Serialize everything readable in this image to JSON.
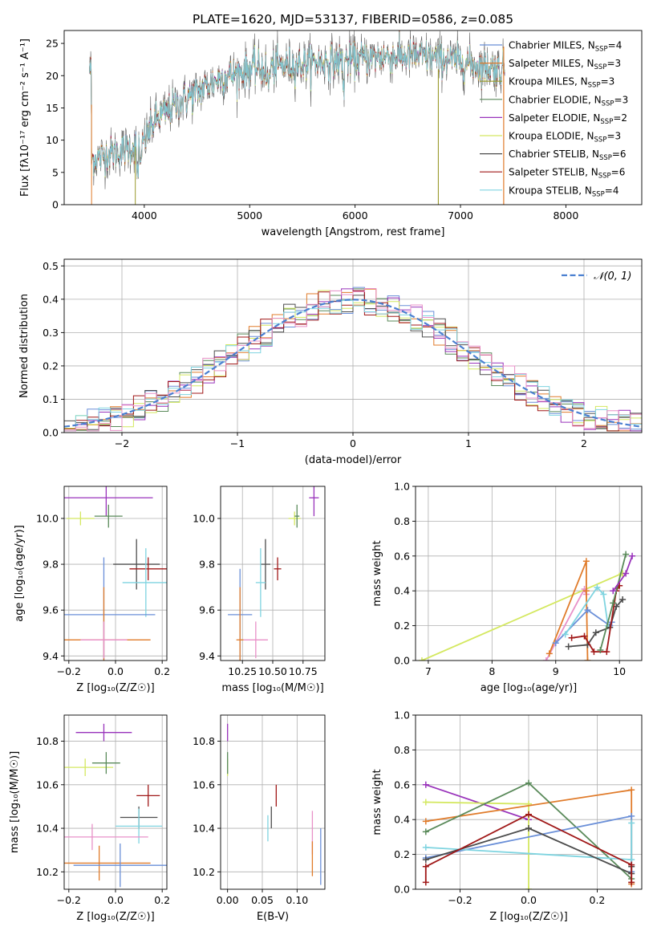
{
  "figure_title": "PLATE=1620, MJD=53137, FIBERID=0586, z=0.085",
  "colors": {
    "chabrier_miles": "#6a8fd8",
    "salpeter_miles": "#e07b2a",
    "kroupa_miles": "#9a9a2a",
    "chabrier_elodie": "#5a8a5a",
    "salpeter_elodie": "#9933bb",
    "kroupa_elodie": "#d4e860",
    "chabrier_stelib": "#4d4d4d",
    "salpeter_stelib": "#a01818",
    "kroupa_stelib": "#7fd4e0",
    "pink": "#e890c8",
    "gauss": "#4a7fd0"
  },
  "chart_data": [
    {
      "id": "spectrum",
      "type": "line",
      "xlabel": "wavelength [Angstrom, rest frame]",
      "ylabel": "Flux [fλ10⁻¹⁷ erg cm⁻² s⁻¹ A⁻¹]",
      "xlim": [
        3240,
        8720
      ],
      "ylim": [
        0,
        27
      ],
      "xticks": [
        4000,
        5000,
        6000,
        7000,
        8000
      ],
      "yticks": [
        0,
        5,
        10,
        15,
        20,
        25
      ],
      "legend_position": "top-right",
      "legend": [
        "Chabrier MILES, NSSP=4",
        "Salpeter MILES, NSSP=3",
        "Kroupa MILES, NSSP=3",
        "Chabrier ELODIE, NSSP=3",
        "Salpeter ELODIE, NSSP=2",
        "Kroupa ELODIE, NSSP=3",
        "Chabrier STELIB, NSSP=6",
        "Salpeter STELIB, NSSP=6",
        "Kroupa STELIB, NSSP=4"
      ],
      "continuum": {
        "x": [
          3500,
          3700,
          3900,
          4000,
          4100,
          4300,
          4500,
          4700,
          5000,
          5300,
          5600,
          6000,
          6300,
          6600,
          6900,
          7200,
          7400
        ],
        "y": [
          7,
          8,
          9,
          10,
          13,
          15.5,
          17.5,
          19.5,
          21,
          21.5,
          22,
          22.5,
          23,
          23,
          22.5,
          21.5,
          21
        ]
      }
    },
    {
      "id": "residuals",
      "type": "bar",
      "xlabel": "(data-model)/error",
      "ylabel": "Normed distribution",
      "xlim": [
        -2.5,
        2.5
      ],
      "ylim": [
        0,
        0.52
      ],
      "xticks": [
        -2,
        -1,
        0,
        1,
        2
      ],
      "yticks": [
        0.0,
        0.1,
        0.2,
        0.3,
        0.4,
        0.5
      ],
      "grid": true,
      "legend_position": "top-right",
      "legend": [
        "𝒩(0, 1)"
      ]
    },
    {
      "id": "age_vs_Z",
      "type": "scatter",
      "xlabel": "Z [log₁₀(Z/Z☉)]",
      "ylabel": "age  [log₁₀(age/yr)]",
      "xlim": [
        -0.22,
        0.22
      ],
      "ylim": [
        9.38,
        10.14
      ],
      "xticks": [
        -0.2,
        0.0,
        0.2
      ],
      "yticks": [
        9.4,
        9.6,
        9.8,
        10.0
      ],
      "points": [
        {
          "x": -0.04,
          "xerr": 0.2,
          "y": 10.09,
          "yerr": 0.08,
          "c": "salpeter_elodie"
        },
        {
          "x": -0.15,
          "xerr": 0.06,
          "y": 10.0,
          "yerr": 0.03,
          "c": "kroupa_elodie"
        },
        {
          "x": -0.03,
          "xerr": 0.06,
          "y": 10.01,
          "yerr": 0.05,
          "c": "chabrier_elodie"
        },
        {
          "x": 0.09,
          "xerr": 0.1,
          "y": 9.8,
          "yerr": 0.11,
          "c": "chabrier_stelib"
        },
        {
          "x": 0.14,
          "xerr": 0.08,
          "y": 9.78,
          "yerr": 0.05,
          "c": "salpeter_stelib"
        },
        {
          "x": 0.13,
          "xerr": 0.1,
          "y": 9.72,
          "yerr": 0.15,
          "c": "kroupa_stelib"
        },
        {
          "x": -0.05,
          "xerr": 0.22,
          "y": 9.58,
          "yerr": 0.25,
          "c": "chabrier_miles"
        },
        {
          "x": -0.05,
          "xerr": 0.2,
          "y": 9.47,
          "yerr": 0.23,
          "c": "salpeter_miles"
        },
        {
          "x": -0.05,
          "xerr": 0.1,
          "y": 9.47,
          "yerr": 0.08,
          "c": "pink"
        }
      ]
    },
    {
      "id": "age_vs_mass",
      "type": "scatter",
      "xlabel": "mass [log₁₀(M/M☉)]",
      "ylabel": "",
      "xlim": [
        10.07,
        10.93
      ],
      "ylim": [
        9.38,
        10.14
      ],
      "xticks": [
        10.25,
        10.5,
        10.75
      ],
      "yticks": [
        9.4,
        9.6,
        9.8,
        10.0
      ],
      "points": [
        {
          "x": 10.84,
          "xerr": 0.04,
          "y": 10.09,
          "yerr": 0.08,
          "c": "salpeter_elodie"
        },
        {
          "x": 10.68,
          "xerr": 0.05,
          "y": 10.0,
          "yerr": 0.03,
          "c": "kroupa_elodie"
        },
        {
          "x": 10.7,
          "xerr": 0.02,
          "y": 10.01,
          "yerr": 0.05,
          "c": "chabrier_elodie"
        },
        {
          "x": 10.44,
          "xerr": 0.04,
          "y": 9.8,
          "yerr": 0.11,
          "c": "chabrier_stelib"
        },
        {
          "x": 10.54,
          "xerr": 0.03,
          "y": 9.78,
          "yerr": 0.05,
          "c": "salpeter_stelib"
        },
        {
          "x": 10.4,
          "xerr": 0.04,
          "y": 9.72,
          "yerr": 0.15,
          "c": "kroupa_stelib"
        },
        {
          "x": 10.23,
          "xerr": 0.1,
          "y": 9.58,
          "yerr": 0.2,
          "c": "chabrier_miles"
        },
        {
          "x": 10.23,
          "xerr": 0.03,
          "y": 9.47,
          "yerr": 0.23,
          "c": "salpeter_miles"
        },
        {
          "x": 10.36,
          "xerr": 0.1,
          "y": 9.47,
          "yerr": 0.08,
          "c": "pink"
        }
      ]
    },
    {
      "id": "weight_vs_age",
      "type": "line",
      "xlabel": "age  [log₁₀(age/yr)]",
      "ylabel": "mass weight",
      "xlim": [
        6.8,
        10.35
      ],
      "ylim": [
        0,
        1.0
      ],
      "xticks": [
        7,
        8,
        9,
        10
      ],
      "yticks": [
        0.0,
        0.2,
        0.4,
        0.6,
        0.8,
        1.0
      ],
      "series": [
        {
          "c": "kroupa_elodie",
          "x": [
            6.9,
            10.04,
            10.05
          ],
          "y": [
            0.0,
            0.5,
            0.5
          ]
        },
        {
          "c": "pink",
          "x": [
            8.85,
            9.45,
            9.48
          ],
          "y": [
            0.0,
            0.41,
            0.38
          ]
        },
        {
          "c": "salpeter_miles",
          "x": [
            8.9,
            9.48,
            9.48,
            9.5
          ],
          "y": [
            0.04,
            0.57,
            0.4,
            0.0
          ]
        },
        {
          "c": "chabrier_miles",
          "x": [
            9.0,
            9.5,
            9.85,
            9.88
          ],
          "y": [
            0.1,
            0.29,
            0.2,
            0.22
          ]
        },
        {
          "c": "kroupa_stelib",
          "x": [
            9.15,
            9.65,
            9.75,
            9.82
          ],
          "y": [
            0.15,
            0.42,
            0.38,
            0.2
          ]
        },
        {
          "c": "chabrier_stelib",
          "x": [
            9.2,
            9.5,
            9.63,
            9.85,
            9.95,
            10.05
          ],
          "y": [
            0.08,
            0.09,
            0.16,
            0.19,
            0.31,
            0.35
          ]
        },
        {
          "c": "salpeter_stelib",
          "x": [
            9.25,
            9.45,
            9.6,
            9.8,
            9.95,
            10.0
          ],
          "y": [
            0.13,
            0.14,
            0.05,
            0.05,
            0.4,
            0.43
          ]
        },
        {
          "c": "chabrier_elodie",
          "x": [
            9.7,
            9.9,
            10.1
          ],
          "y": [
            0.06,
            0.33,
            0.61
          ]
        },
        {
          "c": "salpeter_elodie",
          "x": [
            9.9,
            10.1,
            10.2
          ],
          "y": [
            0.4,
            0.5,
            0.6
          ]
        }
      ]
    },
    {
      "id": "mass_vs_Z",
      "type": "scatter",
      "xlabel": "Z [log₁₀(Z/Z☉)]",
      "ylabel": "mass [log₁₀(M/M☉)]",
      "xlim": [
        -0.22,
        0.22
      ],
      "ylim": [
        10.12,
        10.92
      ],
      "xticks": [
        -0.2,
        0.0,
        0.2
      ],
      "yticks": [
        10.2,
        10.4,
        10.6,
        10.8
      ],
      "points": [
        {
          "x": -0.05,
          "xerr": 0.12,
          "y": 10.84,
          "yerr": 0.04,
          "c": "salpeter_elodie"
        },
        {
          "x": -0.13,
          "xerr": 0.12,
          "y": 10.68,
          "yerr": 0.04,
          "c": "kroupa_elodie"
        },
        {
          "x": -0.04,
          "xerr": 0.06,
          "y": 10.7,
          "yerr": 0.05,
          "c": "chabrier_elodie"
        },
        {
          "x": 0.14,
          "xerr": 0.05,
          "y": 10.55,
          "yerr": 0.05,
          "c": "salpeter_stelib"
        },
        {
          "x": 0.1,
          "xerr": 0.08,
          "y": 10.45,
          "yerr": 0.05,
          "c": "chabrier_stelib"
        },
        {
          "x": 0.1,
          "xerr": 0.1,
          "y": 10.41,
          "yerr": 0.08,
          "c": "kroupa_stelib"
        },
        {
          "x": -0.1,
          "xerr": 0.24,
          "y": 10.36,
          "yerr": 0.06,
          "c": "pink"
        },
        {
          "x": -0.07,
          "xerr": 0.22,
          "y": 10.24,
          "yerr": 0.08,
          "c": "salpeter_miles"
        },
        {
          "x": 0.02,
          "xerr": 0.2,
          "y": 10.23,
          "yerr": 0.1,
          "c": "chabrier_miles"
        }
      ]
    },
    {
      "id": "mass_vs_ebv",
      "type": "scatter",
      "xlabel": "E(B-V)",
      "ylabel": "",
      "xlim": [
        -0.01,
        0.14
      ],
      "ylim": [
        10.12,
        10.92
      ],
      "xticks": [
        0.0,
        0.05,
        0.1
      ],
      "yticks": [
        10.2,
        10.4,
        10.6,
        10.8
      ],
      "points": [
        {
          "x": 0.0,
          "y": 10.84,
          "yerr": 0.04,
          "c": "salpeter_elodie"
        },
        {
          "x": 0.0,
          "y": 10.68,
          "yerr": 0.04,
          "c": "kroupa_elodie"
        },
        {
          "x": 0.0,
          "y": 10.7,
          "yerr": 0.05,
          "c": "chabrier_elodie"
        },
        {
          "x": 0.07,
          "y": 10.55,
          "yerr": 0.05,
          "c": "salpeter_stelib"
        },
        {
          "x": 0.063,
          "y": 10.45,
          "yerr": 0.05,
          "c": "chabrier_stelib"
        },
        {
          "x": 0.058,
          "y": 10.4,
          "yerr": 0.06,
          "c": "kroupa_stelib"
        },
        {
          "x": 0.122,
          "y": 10.38,
          "yerr": 0.1,
          "c": "pink"
        },
        {
          "x": 0.122,
          "y": 10.26,
          "yerr": 0.08,
          "c": "salpeter_miles"
        },
        {
          "x": 0.134,
          "y": 10.27,
          "yerr": 0.13,
          "c": "chabrier_miles"
        }
      ]
    },
    {
      "id": "weight_vs_Z",
      "type": "line",
      "xlabel": "Z [log₁₀(Z/Z☉)]",
      "ylabel": "mass weight",
      "xlim": [
        -0.33,
        0.33
      ],
      "ylim": [
        0,
        1.0
      ],
      "xticks": [
        -0.2,
        0.0,
        0.2
      ],
      "yticks": [
        0.0,
        0.2,
        0.4,
        0.6,
        0.8,
        1.0
      ],
      "series": [
        {
          "c": "salpeter_elodie",
          "x": [
            -0.3,
            0.0
          ],
          "y": [
            0.6,
            0.4
          ]
        },
        {
          "c": "kroupa_elodie",
          "x": [
            -0.3,
            0.0,
            0.0
          ],
          "y": [
            0.5,
            0.49,
            0.0
          ]
        },
        {
          "c": "salpeter_miles",
          "x": [
            -0.3,
            0.3,
            0.3
          ],
          "y": [
            0.39,
            0.57,
            0.03
          ]
        },
        {
          "c": "chabrier_elodie",
          "x": [
            -0.3,
            0.0,
            0.3
          ],
          "y": [
            0.33,
            0.61,
            0.06
          ]
        },
        {
          "c": "chabrier_miles",
          "x": [
            -0.3,
            0.3,
            0.3
          ],
          "y": [
            0.18,
            0.42,
            0.1
          ]
        },
        {
          "c": "kroupa_stelib",
          "x": [
            -0.3,
            0.3,
            0.3
          ],
          "y": [
            0.24,
            0.17,
            0.38
          ]
        },
        {
          "c": "chabrier_stelib",
          "x": [
            -0.3,
            0.0,
            0.3,
            0.3
          ],
          "y": [
            0.17,
            0.35,
            0.09,
            0.13
          ]
        },
        {
          "c": "salpeter_stelib",
          "x": [
            -0.3,
            -0.3,
            0.0,
            0.3,
            0.3
          ],
          "y": [
            0.04,
            0.13,
            0.43,
            0.14,
            0.04
          ]
        }
      ]
    }
  ]
}
